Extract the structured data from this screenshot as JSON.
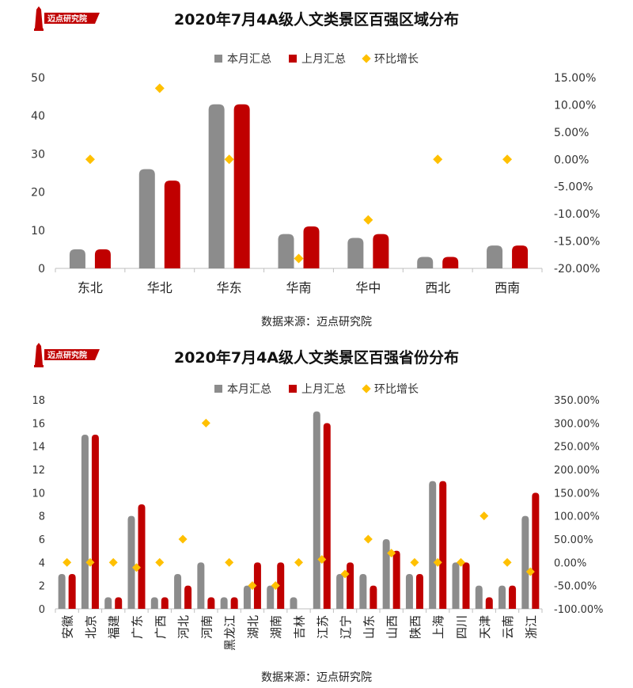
{
  "colors": {
    "current": "#8c8c8c",
    "previous": "#c00000",
    "growth": "#ffc000",
    "axis": "#bfbfbf"
  },
  "logo": {
    "text": "迈点研究院"
  },
  "source_label": "数据来源：迈点研究院",
  "legend": {
    "current": "本月汇总",
    "previous": "上月汇总",
    "growth": "环比增长"
  },
  "chart_data": [
    {
      "type": "bar",
      "title": "2020年7月4A级人文类景区百强区域分布",
      "categories": [
        "东北",
        "华北",
        "华东",
        "华南",
        "华中",
        "西北",
        "西南"
      ],
      "series": [
        {
          "name": "本月汇总",
          "type": "bar",
          "values": [
            5,
            26,
            43,
            9,
            8,
            3,
            6
          ]
        },
        {
          "name": "上月汇总",
          "type": "bar",
          "values": [
            5,
            23,
            43,
            11,
            9,
            3,
            6
          ]
        },
        {
          "name": "环比增长",
          "type": "scatter",
          "axis": "right",
          "values": [
            0.0,
            13.04,
            0.0,
            -18.18,
            -11.11,
            0.0,
            0.0
          ]
        }
      ],
      "ylim": [
        0,
        50
      ],
      "yticks": [
        0,
        10,
        20,
        30,
        40,
        50
      ],
      "y2lim": [
        -20,
        15
      ],
      "y2ticks": [
        "15.00%",
        "10.00%",
        "5.00%",
        "0.00%",
        "-5.00%",
        "-10.00%",
        "-15.00%",
        "-20.00%"
      ],
      "legend_position": "top-center"
    },
    {
      "type": "bar",
      "title": "2020年7月4A级人文类景区百强省份分布",
      "categories": [
        "安徽",
        "北京",
        "福建",
        "广东",
        "广西",
        "河北",
        "河南",
        "黑龙江",
        "湖北",
        "湖南",
        "吉林",
        "江苏",
        "辽宁",
        "山东",
        "山西",
        "陕西",
        "上海",
        "四川",
        "天津",
        "云南",
        "浙江"
      ],
      "series": [
        {
          "name": "本月汇总",
          "type": "bar",
          "values": [
            3,
            15,
            1,
            8,
            1,
            3,
            4,
            1,
            2,
            2,
            1,
            17,
            3,
            3,
            6,
            3,
            11,
            4,
            2,
            2,
            8
          ]
        },
        {
          "name": "上月汇总",
          "type": "bar",
          "values": [
            3,
            15,
            1,
            9,
            1,
            2,
            1,
            1,
            4,
            4,
            0,
            16,
            4,
            2,
            5,
            3,
            11,
            4,
            1,
            2,
            10
          ]
        },
        {
          "name": "环比增长",
          "type": "scatter",
          "axis": "right",
          "values": [
            0,
            0,
            0,
            -11.11,
            0,
            50,
            300,
            0,
            -50,
            -50,
            0,
            6.25,
            -25,
            50,
            20,
            0,
            0,
            0,
            100,
            0,
            -20
          ]
        }
      ],
      "ylim": [
        0,
        18
      ],
      "yticks": [
        0,
        2,
        4,
        6,
        8,
        10,
        12,
        14,
        16,
        18
      ],
      "y2lim": [
        -100,
        350
      ],
      "y2ticks": [
        "350.00%",
        "300.00%",
        "250.00%",
        "200.00%",
        "150.00%",
        "100.00%",
        "50.00%",
        "0.00%",
        "-50.00%",
        "-100.00%"
      ],
      "legend_position": "top-center"
    }
  ]
}
